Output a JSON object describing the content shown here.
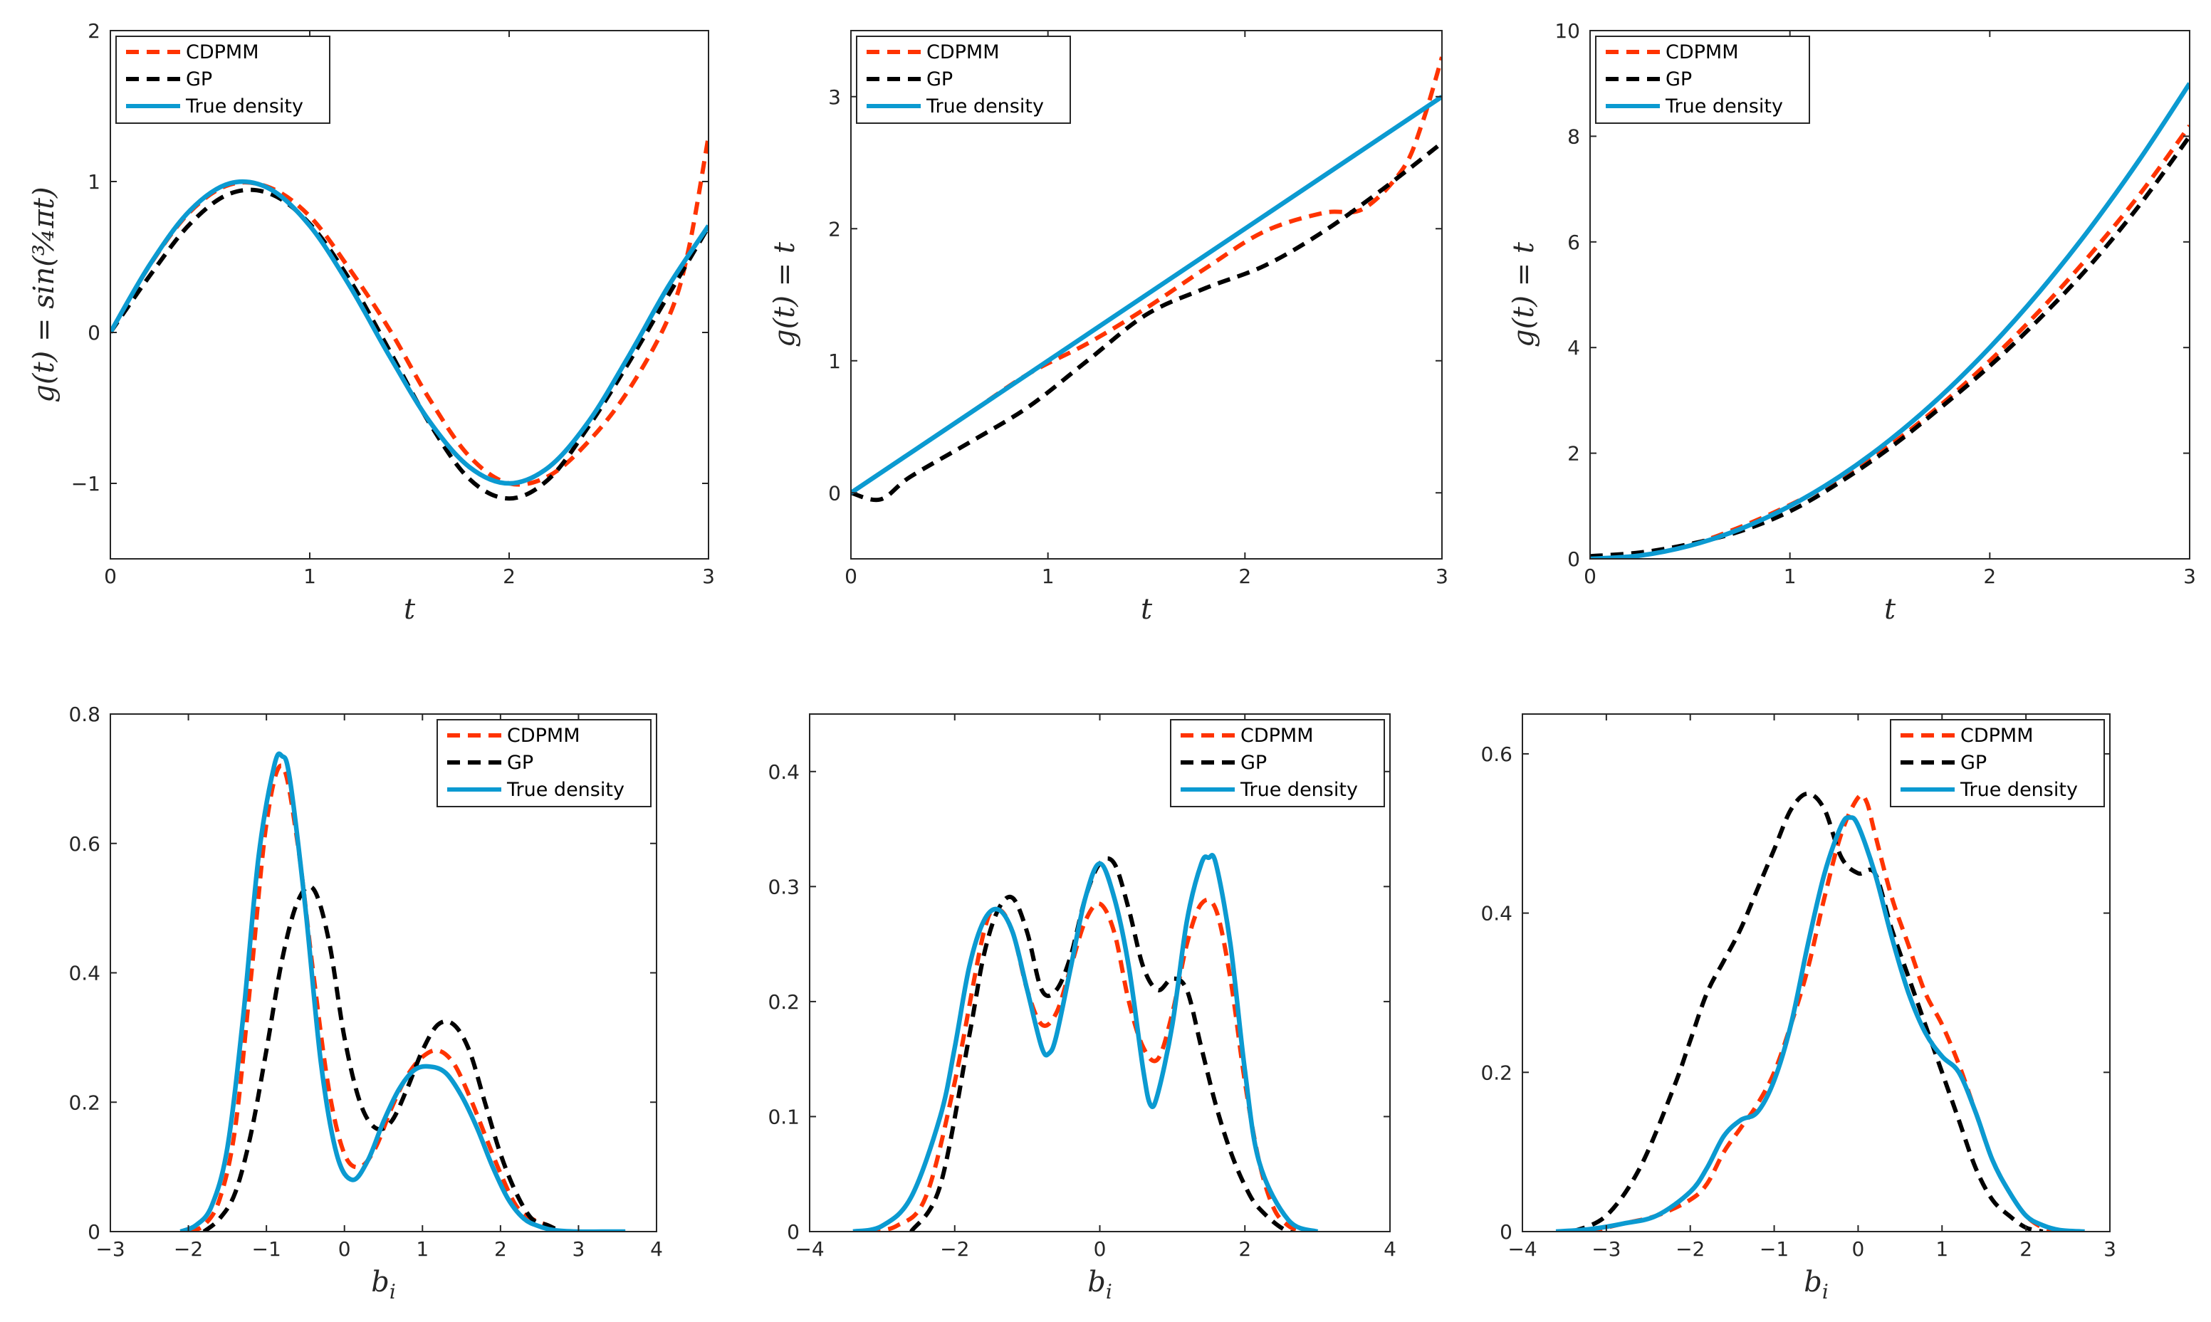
{
  "colors": {
    "cdpmm": "#ff3300",
    "gp": "#000000",
    "true": "#0b9ad1",
    "axis": "#262626"
  },
  "legend_labels": {
    "cdpmm": "CDPMM",
    "gp": "GP",
    "true": "True density"
  },
  "chart_data": [
    {
      "type": "line",
      "xlabel": "t",
      "ylabel": "g(t) = sin(¾πt)",
      "xlim": [
        0,
        3
      ],
      "ylim": [
        -1.5,
        2
      ],
      "xticks": [
        0,
        1,
        2,
        3
      ],
      "yticks": [
        -1,
        0,
        1,
        2
      ],
      "xtick_labels": [
        "0",
        "1",
        "2",
        "3"
      ],
      "ytick_labels": [
        "−1",
        "0",
        "1",
        "2"
      ],
      "legend_position": "top-left",
      "series": [
        {
          "name": "CDPMM",
          "key": "cdpmm",
          "style": "dashed",
          "x": [
            0,
            0.2,
            0.4,
            0.6,
            0.8,
            1.0,
            1.2,
            1.4,
            1.6,
            1.8,
            2.0,
            2.2,
            2.4,
            2.6,
            2.8,
            2.9,
            3.0
          ],
          "y": [
            0,
            0.45,
            0.8,
            0.98,
            0.96,
            0.77,
            0.42,
            0.02,
            -0.44,
            -0.82,
            -1.0,
            -0.95,
            -0.72,
            -0.38,
            0.1,
            0.55,
            1.3
          ]
        },
        {
          "name": "GP",
          "key": "gp",
          "style": "dashed",
          "x": [
            0,
            0.2,
            0.4,
            0.6,
            0.8,
            1.0,
            1.2,
            1.4,
            1.6,
            1.8,
            2.0,
            2.2,
            2.4,
            2.6,
            2.8,
            3.0
          ],
          "y": [
            0,
            0.38,
            0.72,
            0.92,
            0.92,
            0.72,
            0.35,
            -0.12,
            -0.6,
            -0.97,
            -1.1,
            -0.97,
            -0.62,
            -0.2,
            0.25,
            0.7
          ]
        },
        {
          "name": "True density",
          "key": "true",
          "style": "solid",
          "x": [
            0,
            0.2,
            0.4,
            0.6,
            0.8,
            1.0,
            1.2,
            1.4,
            1.6,
            1.8,
            2.0,
            2.2,
            2.4,
            2.6,
            2.8,
            3.0
          ],
          "y": [
            0,
            0.454,
            0.809,
            0.988,
            0.951,
            0.707,
            0.309,
            -0.156,
            -0.588,
            -0.891,
            -1.0,
            -0.891,
            -0.588,
            -0.156,
            0.309,
            0.707
          ]
        }
      ]
    },
    {
      "type": "line",
      "xlabel": "t",
      "ylabel": "g(t) = t",
      "xlim": [
        0,
        3
      ],
      "ylim": [
        -0.5,
        3.5
      ],
      "xticks": [
        0,
        1,
        2,
        3
      ],
      "yticks": [
        0,
        1,
        2,
        3
      ],
      "xtick_labels": [
        "0",
        "1",
        "2",
        "3"
      ],
      "ytick_labels": [
        "0",
        "1",
        "2",
        "3"
      ],
      "legend_position": "top-left",
      "series": [
        {
          "name": "CDPMM",
          "key": "cdpmm",
          "style": "dashed",
          "x": [
            0,
            0.3,
            0.6,
            0.9,
            1.2,
            1.5,
            1.8,
            2.1,
            2.4,
            2.6,
            2.8,
            2.9,
            3.0
          ],
          "y": [
            0,
            0.3,
            0.6,
            0.9,
            1.13,
            1.4,
            1.7,
            1.98,
            2.12,
            2.15,
            2.45,
            2.8,
            3.3
          ]
        },
        {
          "name": "GP",
          "key": "gp",
          "style": "dashed",
          "x": [
            0,
            0.15,
            0.3,
            0.6,
            0.9,
            1.2,
            1.5,
            1.8,
            2.1,
            2.4,
            2.7,
            3.0
          ],
          "y": [
            0,
            -0.05,
            0.12,
            0.38,
            0.65,
            1.0,
            1.35,
            1.55,
            1.72,
            1.98,
            2.3,
            2.65
          ]
        },
        {
          "name": "True density",
          "key": "true",
          "style": "solid",
          "x": [
            0,
            3
          ],
          "y": [
            0,
            3
          ]
        }
      ]
    },
    {
      "type": "line",
      "xlabel": "t",
      "ylabel": "g(t) = t",
      "xlim": [
        0,
        3
      ],
      "ylim": [
        0,
        10
      ],
      "xticks": [
        0,
        1,
        2,
        3
      ],
      "yticks": [
        0,
        2,
        4,
        6,
        8,
        10
      ],
      "xtick_labels": [
        "0",
        "1",
        "2",
        "3"
      ],
      "ytick_labels": [
        "0",
        "2",
        "4",
        "6",
        "8",
        "10"
      ],
      "legend_position": "top-left",
      "series": [
        {
          "name": "CDPMM",
          "key": "cdpmm",
          "style": "dashed",
          "x": [
            0,
            0.25,
            0.5,
            0.75,
            1.0,
            1.25,
            1.5,
            1.75,
            2.0,
            2.25,
            2.5,
            2.75,
            3.0
          ],
          "y": [
            0,
            0.06,
            0.26,
            0.6,
            1.02,
            1.52,
            2.15,
            2.9,
            3.75,
            4.7,
            5.75,
            6.9,
            8.2
          ]
        },
        {
          "name": "GP",
          "key": "gp",
          "style": "dashed",
          "x": [
            0,
            0.25,
            0.5,
            0.75,
            1.0,
            1.25,
            1.5,
            1.75,
            2.0,
            2.25,
            2.5,
            2.75,
            3.0
          ],
          "y": [
            0.05,
            0.12,
            0.28,
            0.52,
            0.9,
            1.45,
            2.1,
            2.85,
            3.65,
            4.55,
            5.55,
            6.7,
            8.0
          ]
        },
        {
          "name": "True density",
          "key": "true",
          "style": "solid",
          "x": [
            0,
            0.25,
            0.5,
            0.75,
            1.0,
            1.25,
            1.5,
            1.75,
            2.0,
            2.25,
            2.5,
            2.75,
            3.0
          ],
          "y": [
            0,
            0.0625,
            0.25,
            0.5625,
            1.0,
            1.5625,
            2.25,
            3.0625,
            4.0,
            5.0625,
            6.25,
            7.5625,
            9.0
          ]
        }
      ]
    },
    {
      "type": "line",
      "xlabel": "b_i",
      "ylabel": "",
      "xlim": [
        -3,
        4
      ],
      "ylim": [
        0,
        0.8
      ],
      "xticks": [
        -3,
        -2,
        -1,
        0,
        1,
        2,
        3,
        4
      ],
      "yticks": [
        0,
        0.2,
        0.4,
        0.6,
        0.8
      ],
      "xtick_labels": [
        "−3",
        "−2",
        "−1",
        "0",
        "1",
        "2",
        "3",
        "4"
      ],
      "ytick_labels": [
        "0",
        "0.2",
        "0.4",
        "0.6",
        "0.8"
      ],
      "legend_position": "top-right",
      "series": [
        {
          "name": "CDPMM",
          "key": "cdpmm",
          "style": "dashed",
          "x": [
            -2.0,
            -1.8,
            -1.6,
            -1.4,
            -1.2,
            -1.0,
            -0.8,
            -0.6,
            -0.4,
            -0.2,
            0.0,
            0.2,
            0.4,
            0.6,
            0.8,
            1.0,
            1.2,
            1.4,
            1.6,
            1.8,
            2.0,
            2.2,
            2.4,
            2.6,
            2.8,
            3.0
          ],
          "y": [
            0.0,
            0.01,
            0.05,
            0.16,
            0.39,
            0.63,
            0.72,
            0.6,
            0.4,
            0.22,
            0.12,
            0.1,
            0.13,
            0.19,
            0.24,
            0.27,
            0.28,
            0.26,
            0.21,
            0.15,
            0.09,
            0.04,
            0.02,
            0.01,
            0.0,
            0.0
          ]
        },
        {
          "name": "GP",
          "key": "gp",
          "style": "dashed",
          "x": [
            -1.8,
            -1.6,
            -1.4,
            -1.2,
            -1.0,
            -0.8,
            -0.6,
            -0.4,
            -0.2,
            0.0,
            0.2,
            0.4,
            0.6,
            0.8,
            1.0,
            1.2,
            1.4,
            1.6,
            1.8,
            2.0,
            2.2,
            2.4,
            2.6,
            2.8,
            3.0
          ],
          "y": [
            0.0,
            0.02,
            0.06,
            0.15,
            0.28,
            0.42,
            0.51,
            0.53,
            0.45,
            0.3,
            0.2,
            0.16,
            0.17,
            0.22,
            0.28,
            0.32,
            0.32,
            0.28,
            0.2,
            0.12,
            0.06,
            0.02,
            0.01,
            0.0,
            0.0
          ]
        },
        {
          "name": "True density",
          "key": "true",
          "style": "solid",
          "x": [
            -2.1,
            -1.9,
            -1.7,
            -1.5,
            -1.3,
            -1.1,
            -0.9,
            -0.8,
            -0.7,
            -0.5,
            -0.3,
            -0.1,
            0.1,
            0.3,
            0.5,
            0.7,
            0.9,
            1.1,
            1.3,
            1.5,
            1.7,
            1.9,
            2.1,
            2.3,
            2.5,
            2.7,
            3.0,
            3.3,
            3.6
          ],
          "y": [
            0.0,
            0.01,
            0.04,
            0.13,
            0.33,
            0.58,
            0.72,
            0.735,
            0.7,
            0.5,
            0.26,
            0.12,
            0.08,
            0.11,
            0.17,
            0.22,
            0.25,
            0.255,
            0.245,
            0.21,
            0.16,
            0.1,
            0.05,
            0.02,
            0.008,
            0.002,
            0.0,
            0.0,
            0.0
          ]
        }
      ]
    },
    {
      "type": "line",
      "xlabel": "b_i",
      "ylabel": "",
      "xlim": [
        -4,
        4
      ],
      "ylim": [
        0,
        0.45
      ],
      "xticks": [
        -4,
        -2,
        0,
        2,
        4
      ],
      "yticks": [
        0,
        0.1,
        0.2,
        0.3,
        0.4
      ],
      "xtick_labels": [
        "−4",
        "−2",
        "0",
        "2",
        "4"
      ],
      "ytick_labels": [
        "0",
        "0.1",
        "0.2",
        "0.3",
        "0.4"
      ],
      "legend_position": "top-right",
      "series": [
        {
          "name": "CDPMM",
          "key": "cdpmm",
          "style": "dashed",
          "x": [
            -3.2,
            -2.8,
            -2.4,
            -2.0,
            -1.6,
            -1.4,
            -1.2,
            -1.0,
            -0.8,
            -0.6,
            -0.4,
            -0.2,
            0.0,
            0.2,
            0.4,
            0.6,
            0.8,
            1.0,
            1.2,
            1.4,
            1.6,
            1.8,
            2.0,
            2.2,
            2.4,
            2.6,
            2.8
          ],
          "y": [
            0.0,
            0.005,
            0.03,
            0.13,
            0.26,
            0.28,
            0.26,
            0.21,
            0.18,
            0.19,
            0.23,
            0.27,
            0.285,
            0.26,
            0.2,
            0.16,
            0.15,
            0.19,
            0.25,
            0.285,
            0.28,
            0.22,
            0.13,
            0.06,
            0.02,
            0.005,
            0.0
          ]
        },
        {
          "name": "GP",
          "key": "gp",
          "style": "dashed",
          "x": [
            -2.6,
            -2.2,
            -1.8,
            -1.6,
            -1.4,
            -1.2,
            -1.0,
            -0.8,
            -0.6,
            -0.4,
            -0.2,
            0.0,
            0.2,
            0.4,
            0.6,
            0.8,
            1.0,
            1.2,
            1.4,
            1.6,
            1.8,
            2.0,
            2.2,
            2.6,
            3.0
          ],
          "y": [
            0.0,
            0.04,
            0.17,
            0.24,
            0.28,
            0.29,
            0.26,
            0.21,
            0.21,
            0.24,
            0.29,
            0.32,
            0.32,
            0.28,
            0.23,
            0.21,
            0.22,
            0.21,
            0.16,
            0.11,
            0.07,
            0.04,
            0.02,
            0.0,
            0.0
          ]
        },
        {
          "name": "True density",
          "key": "true",
          "style": "solid",
          "x": [
            -3.4,
            -3.0,
            -2.6,
            -2.2,
            -2.0,
            -1.8,
            -1.6,
            -1.4,
            -1.2,
            -1.0,
            -0.8,
            -0.7,
            -0.6,
            -0.4,
            -0.2,
            0.0,
            0.2,
            0.4,
            0.6,
            0.7,
            0.8,
            1.0,
            1.2,
            1.4,
            1.5,
            1.6,
            1.8,
            2.0,
            2.2,
            2.6,
            3.0
          ],
          "y": [
            0.0,
            0.005,
            0.03,
            0.1,
            0.16,
            0.23,
            0.27,
            0.28,
            0.26,
            0.21,
            0.16,
            0.155,
            0.17,
            0.23,
            0.29,
            0.32,
            0.29,
            0.23,
            0.14,
            0.11,
            0.12,
            0.18,
            0.27,
            0.32,
            0.325,
            0.32,
            0.25,
            0.14,
            0.06,
            0.01,
            0.0
          ]
        }
      ]
    },
    {
      "type": "line",
      "xlabel": "b_i",
      "ylabel": "",
      "xlim": [
        -4,
        3
      ],
      "ylim": [
        0,
        0.65
      ],
      "xticks": [
        -4,
        -3,
        -2,
        -1,
        0,
        1,
        2,
        3
      ],
      "yticks": [
        0,
        0.2,
        0.4,
        0.6
      ],
      "xtick_labels": [
        "−4",
        "−3",
        "−2",
        "−1",
        "0",
        "1",
        "2",
        "3"
      ],
      "ytick_labels": [
        "0",
        "0.2",
        "0.4",
        "0.6"
      ],
      "legend_position": "top-right",
      "series": [
        {
          "name": "CDPMM",
          "key": "cdpmm",
          "style": "dashed",
          "x": [
            -3.2,
            -2.8,
            -2.4,
            -2.0,
            -1.8,
            -1.6,
            -1.4,
            -1.2,
            -1.0,
            -0.8,
            -0.6,
            -0.4,
            -0.2,
            0.0,
            0.1,
            0.2,
            0.4,
            0.6,
            0.8,
            1.0,
            1.2,
            1.4,
            1.6,
            1.8,
            2.0,
            2.2,
            2.4
          ],
          "y": [
            0.0,
            0.01,
            0.02,
            0.04,
            0.06,
            0.1,
            0.13,
            0.16,
            0.2,
            0.26,
            0.33,
            0.42,
            0.5,
            0.545,
            0.54,
            0.5,
            0.42,
            0.36,
            0.3,
            0.26,
            0.21,
            0.15,
            0.09,
            0.05,
            0.02,
            0.005,
            0.0
          ]
        },
        {
          "name": "GP",
          "key": "gp",
          "style": "dashed",
          "x": [
            -3.4,
            -3.0,
            -2.6,
            -2.2,
            -2.0,
            -1.8,
            -1.6,
            -1.4,
            -1.2,
            -1.0,
            -0.8,
            -0.6,
            -0.4,
            -0.2,
            0.0,
            0.2,
            0.4,
            0.6,
            0.8,
            1.0,
            1.2,
            1.4,
            1.6,
            1.8,
            2.0,
            2.2
          ],
          "y": [
            0.0,
            0.02,
            0.08,
            0.18,
            0.24,
            0.3,
            0.34,
            0.38,
            0.43,
            0.48,
            0.53,
            0.55,
            0.53,
            0.47,
            0.45,
            0.45,
            0.38,
            0.32,
            0.26,
            0.2,
            0.14,
            0.08,
            0.04,
            0.02,
            0.005,
            0.0
          ]
        },
        {
          "name": "True density",
          "key": "true",
          "style": "solid",
          "x": [
            -3.6,
            -3.2,
            -2.8,
            -2.4,
            -2.0,
            -1.8,
            -1.6,
            -1.4,
            -1.2,
            -1.0,
            -0.8,
            -0.6,
            -0.4,
            -0.2,
            -0.1,
            0.0,
            0.2,
            0.4,
            0.6,
            0.8,
            1.0,
            1.2,
            1.4,
            1.6,
            1.8,
            2.0,
            2.2,
            2.4,
            2.7
          ],
          "y": [
            0.0,
            0.003,
            0.01,
            0.02,
            0.05,
            0.08,
            0.12,
            0.14,
            0.15,
            0.19,
            0.26,
            0.36,
            0.45,
            0.51,
            0.52,
            0.51,
            0.45,
            0.37,
            0.3,
            0.25,
            0.22,
            0.2,
            0.15,
            0.09,
            0.05,
            0.02,
            0.008,
            0.002,
            0.0
          ]
        }
      ]
    }
  ]
}
